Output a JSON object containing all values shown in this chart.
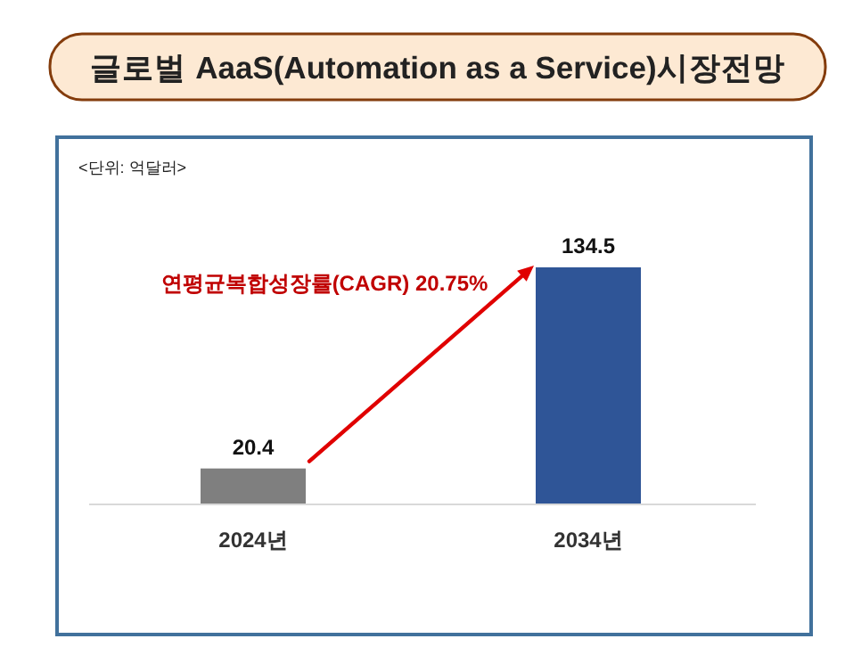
{
  "chart_data": {
    "type": "bar",
    "title": "글로벌 AaaS(Automation as a Service)시장전망",
    "subtitle": "<단위: 억달러>",
    "categories": [
      "2024년",
      "2034년"
    ],
    "values": [
      20.4,
      134.5
    ],
    "colors": [
      "#7f7f7f",
      "#2f5597"
    ],
    "data_labels": true,
    "annotations": [
      "연평균복합성장률(CAGR) 20.75%"
    ]
  }
}
